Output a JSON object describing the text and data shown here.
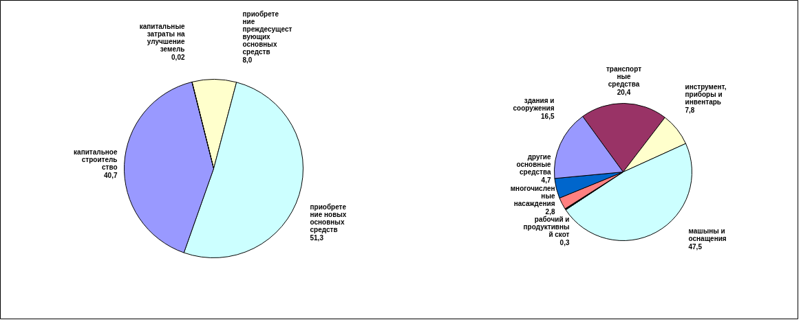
{
  "chart_data": [
    {
      "type": "pie",
      "categories": [
        "приобрете\nние\nпреждесущест\nвующих\nосновных\nсредств",
        "приобрете\nние новых\nосновных\nсредств",
        "капитальное\nстроитель\nство",
        "капитальные\nзатраты на\nулучшение\nземель"
      ],
      "values": [
        8.0,
        51.3,
        40.7,
        0.02
      ],
      "value_labels": [
        "8,0",
        "51,3",
        "40,7",
        "0,02"
      ],
      "colors": [
        "#ffffcc",
        "#ccffff",
        "#9999ff",
        "#993366"
      ]
    },
    {
      "type": "pie",
      "categories": [
        "транспорт\nные\nсредства",
        "инструмент,\nприборы и\nинвентарь",
        "машыны и\nоснащения",
        "рабочий и\nпродуктивны\nй скот",
        "многочислен\nные\nнасаждения",
        "другие\nосновные\nсредства",
        "здания и\nсооружения"
      ],
      "values": [
        20.4,
        7.8,
        47.5,
        0.3,
        2.8,
        4.7,
        16.5
      ],
      "value_labels": [
        "20,4",
        "7,8",
        "47,5",
        "0,3",
        "2,8",
        "4,7",
        "16,5"
      ],
      "colors": [
        "#993366",
        "#ffffcc",
        "#ccffff",
        "#000000",
        "#ff8080",
        "#0066cc",
        "#9999ff"
      ]
    }
  ]
}
